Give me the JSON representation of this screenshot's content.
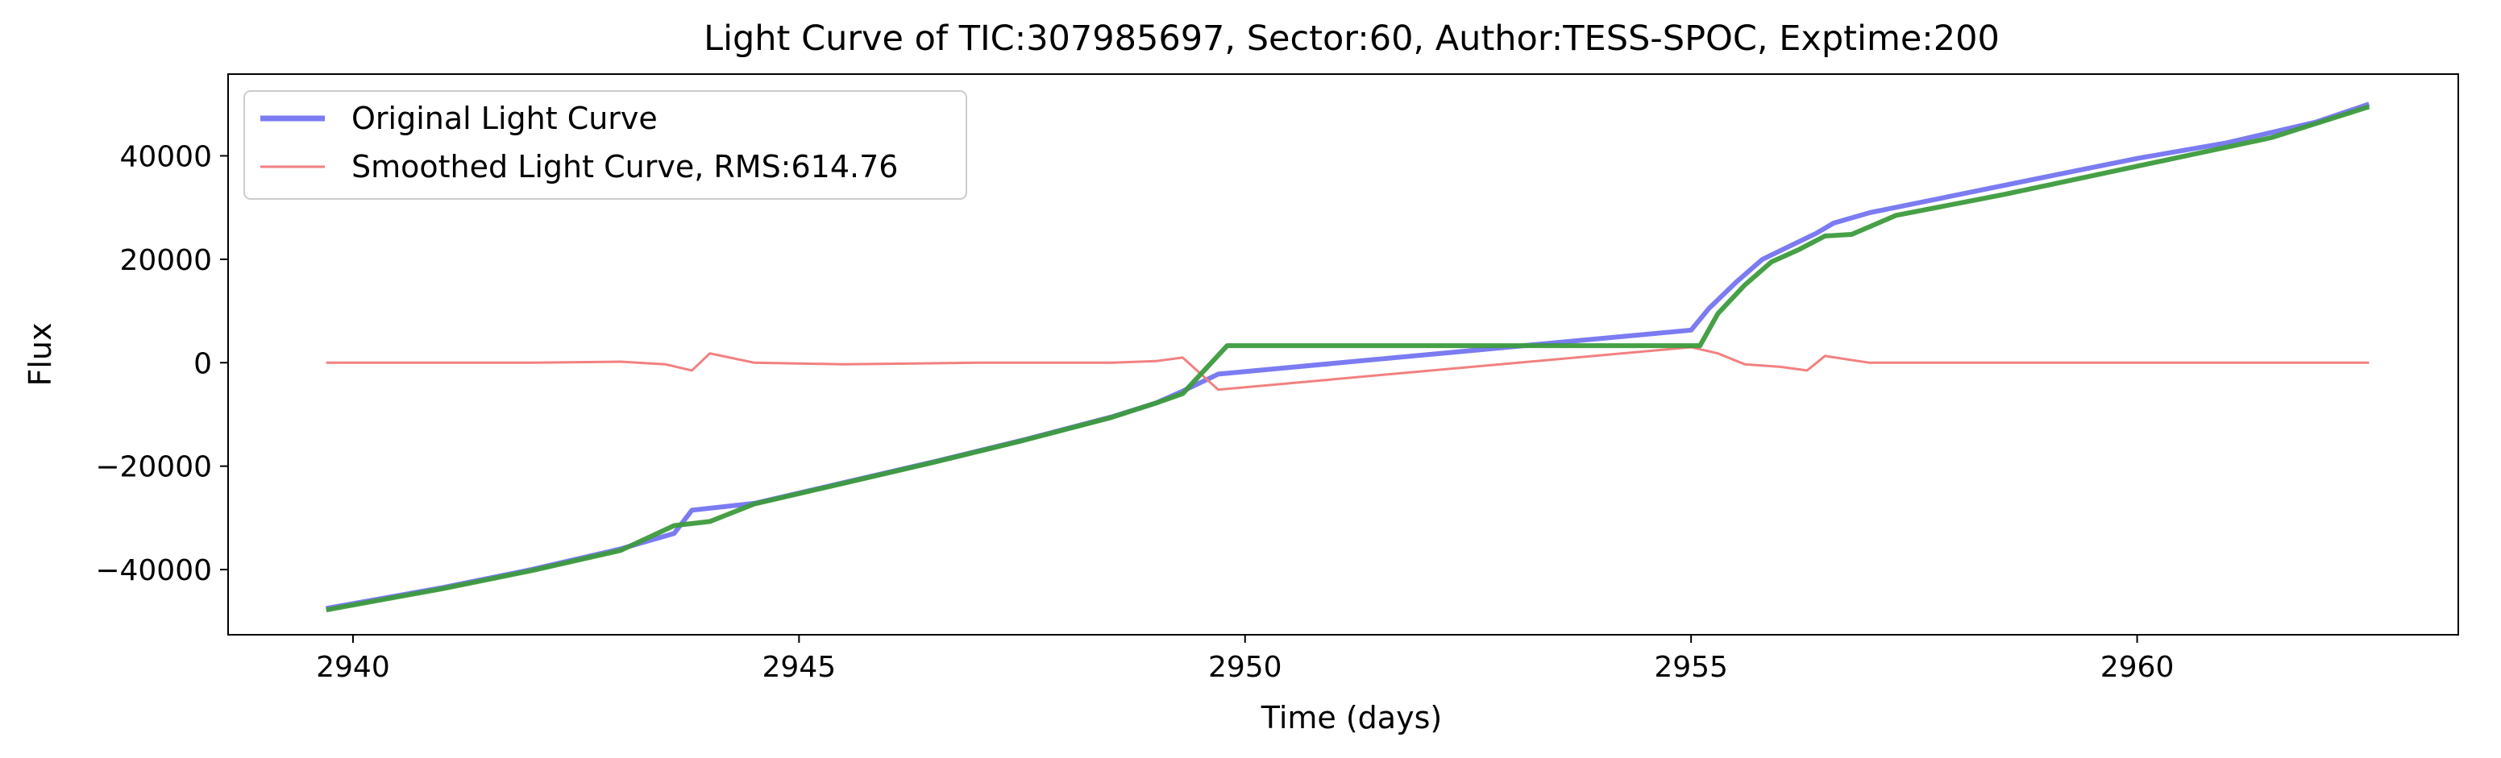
{
  "chart_data": {
    "type": "line",
    "title": "Light Curve of TIC:307985697, Sector:60, Author:TESS-SPOC, Exptime:200",
    "xlabel": "Time (days)",
    "ylabel": "Flux",
    "xlim": [
      2938.6,
      2963.6
    ],
    "ylim": [
      -52600,
      55800
    ],
    "x_ticks": [
      2940,
      2945,
      2950,
      2955,
      2960
    ],
    "x_tick_labels": [
      "2940",
      "2945",
      "2950",
      "2955",
      "2960"
    ],
    "y_ticks": [
      -40000,
      -20000,
      0,
      20000,
      40000
    ],
    "y_tick_labels": [
      "−40000",
      "−20000",
      "0",
      "20000",
      "40000"
    ],
    "grid": false,
    "legend_position": "top-left",
    "series": [
      {
        "name": "Original Light Curve",
        "color": "#7b7bf2",
        "x": [
          2939.7,
          2941.0,
          2942.0,
          2943.0,
          2943.6,
          2943.8,
          2944.5,
          2945.5,
          2946.5,
          2947.5,
          2948.5,
          2949.0,
          2949.3,
          2949.7,
          2955.0,
          2955.2,
          2955.5,
          2955.8,
          2956.1,
          2956.4,
          2956.6,
          2957.0,
          2958.0,
          2959.0,
          2960.0,
          2961.0,
          2962.0,
          2962.6
        ],
        "y": [
          -47500,
          -43500,
          -40000,
          -36000,
          -33000,
          -28500,
          -27200,
          -23200,
          -19200,
          -15000,
          -10500,
          -7800,
          -5500,
          -2200,
          6300,
          10500,
          15500,
          20000,
          22500,
          25000,
          27000,
          29000,
          32500,
          36000,
          39500,
          42500,
          46500,
          50000
        ]
      },
      {
        "name": "Smoothed Light Curve, RMS:614.76",
        "color": "#f28080",
        "x": [
          2939.7,
          2941.0,
          2942.0,
          2943.0,
          2943.5,
          2943.8,
          2944.0,
          2944.5,
          2945.5,
          2947.0,
          2948.5,
          2949.0,
          2949.3,
          2949.7,
          2955.0,
          2955.3,
          2955.6,
          2956.0,
          2956.3,
          2956.5,
          2957.0,
          2958.5,
          2960.0,
          2961.5,
          2962.6
        ],
        "y": [
          0,
          0,
          0,
          200,
          -300,
          -1500,
          1800,
          0,
          -300,
          0,
          0,
          300,
          1000,
          -5200,
          3000,
          1800,
          -300,
          -800,
          -1500,
          1300,
          0,
          0,
          0,
          0,
          0
        ]
      },
      {
        "name": "",
        "color": "#3c9b3c",
        "x": [
          2939.7,
          2941.0,
          2942.0,
          2943.0,
          2943.6,
          2944.0,
          2944.5,
          2945.5,
          2946.5,
          2947.5,
          2948.5,
          2949.0,
          2949.3,
          2949.8,
          2955.1,
          2955.3,
          2955.6,
          2955.9,
          2956.2,
          2956.5,
          2956.8,
          2957.3,
          2958.5,
          2960.0,
          2961.5,
          2962.6
        ],
        "y": [
          -47800,
          -43700,
          -40200,
          -36300,
          -31500,
          -30700,
          -27300,
          -23300,
          -19300,
          -15100,
          -10600,
          -7800,
          -6000,
          3300,
          3300,
          9500,
          15000,
          19500,
          21800,
          24500,
          24800,
          28500,
          32500,
          38000,
          43500,
          49500
        ]
      }
    ]
  }
}
